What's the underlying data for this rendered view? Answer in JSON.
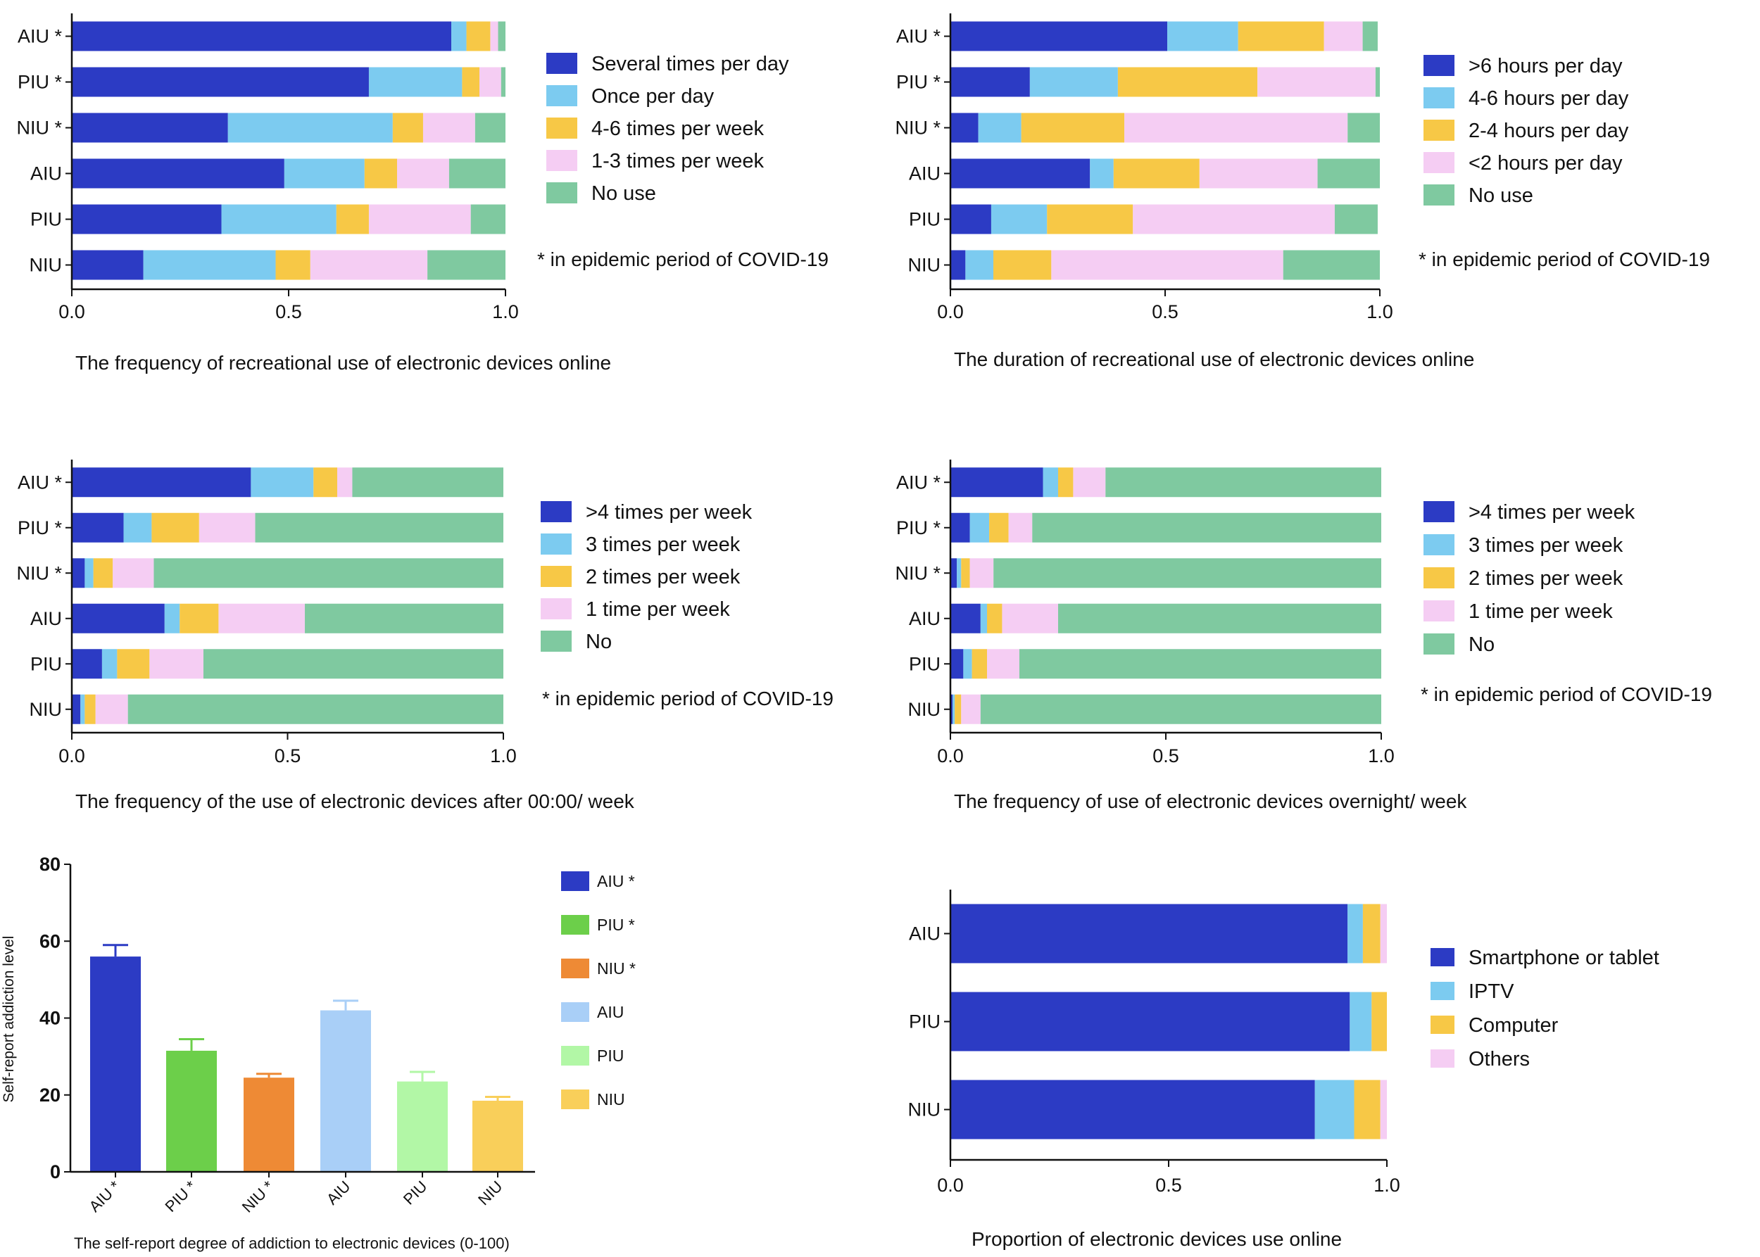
{
  "figure": {
    "star_note": "* in epidemic period of COVID-19"
  },
  "chart_data": [
    {
      "type": "bar",
      "orientation": "horizontal",
      "stacked": true,
      "title": "",
      "xlabel": "The frequency of recreational use of electronic devices online",
      "ylabel": "",
      "xlim": [
        0,
        1
      ],
      "xticks": [
        "0.0",
        "0.5",
        "1.0"
      ],
      "categories": [
        "AIU *",
        "PIU *",
        "NIU *",
        "AIU",
        "PIU",
        "NIU"
      ],
      "legend_position": "right",
      "note": "* in epidemic period of COVID-19",
      "series": [
        {
          "name": "Several times per day",
          "color": "#2c3bc4",
          "values": [
            0.875,
            0.685,
            0.36,
            0.49,
            0.345,
            0.165
          ]
        },
        {
          "name": "Once per day",
          "color": "#7ccbf0",
          "values": [
            0.035,
            0.215,
            0.38,
            0.185,
            0.265,
            0.305
          ]
        },
        {
          "name": "4-6 times per week",
          "color": "#f7c846",
          "values": [
            0.055,
            0.04,
            0.07,
            0.075,
            0.075,
            0.08
          ]
        },
        {
          "name": "1-3 times per week",
          "color": "#f5cdf3",
          "values": [
            0.018,
            0.05,
            0.12,
            0.12,
            0.235,
            0.27
          ]
        },
        {
          "name": "No use",
          "color": "#7fc9a0",
          "values": [
            0.017,
            0.01,
            0.07,
            0.13,
            0.08,
            0.18
          ]
        }
      ]
    },
    {
      "type": "bar",
      "orientation": "horizontal",
      "stacked": true,
      "title": "",
      "xlabel": "The duration of recreational use of electronic devices online",
      "ylabel": "",
      "xlim": [
        0,
        1
      ],
      "xticks": [
        "0.0",
        "0.5",
        "1.0"
      ],
      "categories": [
        "AIU *",
        "PIU *",
        "NIU *",
        "AIU",
        "PIU",
        "NIU"
      ],
      "legend_position": "right",
      "note": "* in epidemic period of COVID-19",
      "series": [
        {
          "name": ">6 hours per day",
          "color": "#2c3bc4",
          "values": [
            0.505,
            0.185,
            0.065,
            0.325,
            0.095,
            0.035
          ]
        },
        {
          "name": "4-6 hours per day",
          "color": "#7ccbf0",
          "values": [
            0.165,
            0.205,
            0.1,
            0.055,
            0.13,
            0.065
          ]
        },
        {
          "name": "2-4 hours per day",
          "color": "#f7c846",
          "values": [
            0.2,
            0.325,
            0.24,
            0.2,
            0.2,
            0.135
          ]
        },
        {
          "name": "<2 hours per day",
          "color": "#f5cdf3",
          "values": [
            0.09,
            0.275,
            0.52,
            0.275,
            0.47,
            0.54
          ]
        },
        {
          "name": "No use",
          "color": "#7fc9a0",
          "values": [
            0.035,
            0.01,
            0.075,
            0.145,
            0.1,
            0.225
          ]
        }
      ]
    },
    {
      "type": "bar",
      "orientation": "horizontal",
      "stacked": true,
      "title": "",
      "xlabel": "The frequency of the use of electronic devices after 00:00/ week",
      "ylabel": "",
      "xlim": [
        0,
        1
      ],
      "xticks": [
        "0.0",
        "0.5",
        "1.0"
      ],
      "categories": [
        "AIU *",
        "PIU *",
        "NIU *",
        "AIU",
        "PIU",
        "NIU"
      ],
      "legend_position": "right",
      "note": "* in epidemic period of COVID-19",
      "series": [
        {
          "name": ">4 times per week",
          "color": "#2c3bc4",
          "values": [
            0.415,
            0.12,
            0.03,
            0.215,
            0.07,
            0.02
          ]
        },
        {
          "name": "3 times per week",
          "color": "#7ccbf0",
          "values": [
            0.145,
            0.065,
            0.02,
            0.035,
            0.035,
            0.01
          ]
        },
        {
          "name": "2 times per week",
          "color": "#f7c846",
          "values": [
            0.055,
            0.11,
            0.045,
            0.09,
            0.075,
            0.025
          ]
        },
        {
          "name": "1 time per week",
          "color": "#f5cdf3",
          "values": [
            0.035,
            0.13,
            0.095,
            0.2,
            0.125,
            0.075
          ]
        },
        {
          "name": "No",
          "color": "#7fc9a0",
          "values": [
            0.35,
            0.575,
            0.81,
            0.46,
            0.695,
            0.87
          ]
        }
      ]
    },
    {
      "type": "bar",
      "orientation": "horizontal",
      "stacked": true,
      "title": "",
      "xlabel": "The frequency of use of electronic devices overnight/ week",
      "ylabel": "",
      "xlim": [
        0,
        1
      ],
      "xticks": [
        "0.0",
        "0.5",
        "1.0"
      ],
      "categories": [
        "AIU *",
        "PIU *",
        "NIU *",
        "AIU",
        "PIU",
        "NIU"
      ],
      "legend_position": "right",
      "note": "* in epidemic period of COVID-19",
      "series": [
        {
          "name": ">4 times per week",
          "color": "#2c3bc4",
          "values": [
            0.215,
            0.045,
            0.015,
            0.07,
            0.03,
            0.005
          ]
        },
        {
          "name": "3 times per week",
          "color": "#7ccbf0",
          "values": [
            0.035,
            0.045,
            0.01,
            0.015,
            0.02,
            0.005
          ]
        },
        {
          "name": "2 times per week",
          "color": "#f7c846",
          "values": [
            0.035,
            0.045,
            0.02,
            0.035,
            0.035,
            0.015
          ]
        },
        {
          "name": "1 time per week",
          "color": "#f5cdf3",
          "values": [
            0.075,
            0.055,
            0.055,
            0.13,
            0.075,
            0.045
          ]
        },
        {
          "name": "No",
          "color": "#7fc9a0",
          "values": [
            0.64,
            0.81,
            0.9,
            0.75,
            0.84,
            0.93
          ]
        }
      ]
    },
    {
      "type": "bar",
      "orientation": "vertical",
      "stacked": false,
      "title": "",
      "xlabel": "The self-report degree of addiction to electronic devices (0-100)",
      "ylabel": "Self-report addiction level",
      "ylim": [
        0,
        80
      ],
      "yticks": [
        "0",
        "20",
        "40",
        "60",
        "80"
      ],
      "categories": [
        "AIU *",
        "PIU *",
        "NIU *",
        "AIU",
        "PIU",
        "NIU"
      ],
      "values": [
        56,
        31.5,
        24.5,
        42,
        23.5,
        18.5
      ],
      "error": [
        3,
        3,
        1,
        2.5,
        2.5,
        1
      ],
      "colors": [
        "#2c3bc4",
        "#6ccf4a",
        "#ee8a35",
        "#a9cff7",
        "#b2f7a6",
        "#f9cf5a"
      ],
      "legend_position": "right",
      "legend": [
        "AIU *",
        "PIU *",
        "NIU *",
        "AIU",
        "PIU",
        "NIU"
      ]
    },
    {
      "type": "bar",
      "orientation": "horizontal",
      "stacked": true,
      "title": "",
      "xlabel": "Proportion of electronic devices use online",
      "ylabel": "",
      "xlim": [
        0,
        1
      ],
      "xticks": [
        "0.0",
        "0.5",
        "1.0"
      ],
      "categories": [
        "AIU",
        "PIU",
        "NIU"
      ],
      "legend_position": "right",
      "series": [
        {
          "name": "Smartphone or tablet",
          "color": "#2c3bc4",
          "values": [
            0.91,
            0.915,
            0.835
          ]
        },
        {
          "name": "IPTV",
          "color": "#7ccbf0",
          "values": [
            0.035,
            0.05,
            0.09
          ]
        },
        {
          "name": "Computer",
          "color": "#f7c846",
          "values": [
            0.04,
            0.035,
            0.06
          ]
        },
        {
          "name": "Others",
          "color": "#f5cdf3",
          "values": [
            0.015,
            0.0,
            0.015
          ]
        }
      ]
    }
  ]
}
